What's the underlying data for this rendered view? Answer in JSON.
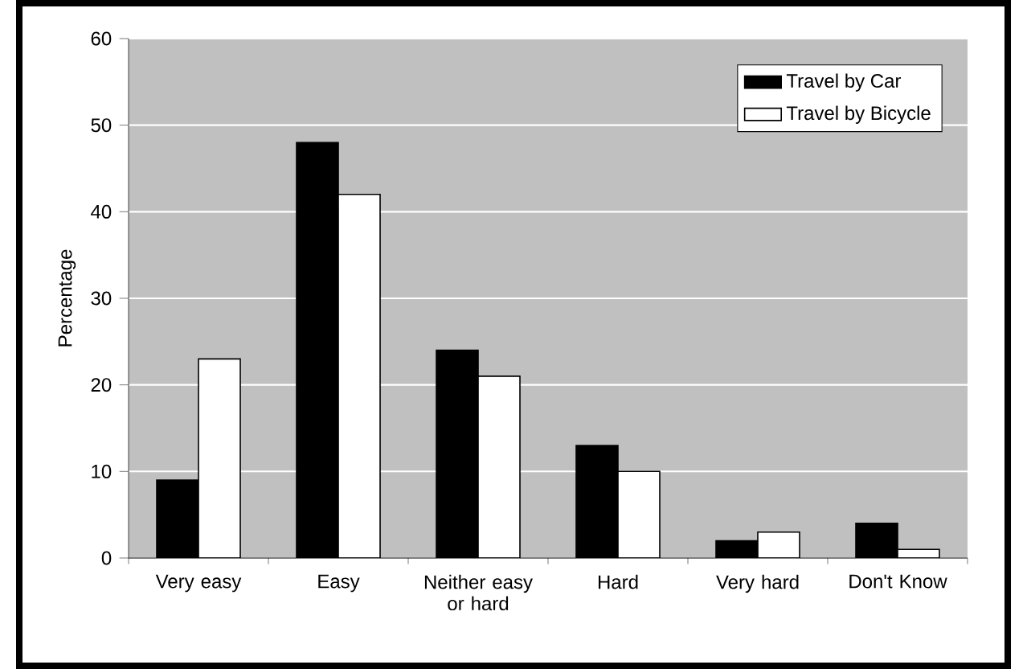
{
  "chart_data": {
    "type": "bar",
    "ylabel": "Percentage",
    "categories": [
      "Very easy",
      "Easy",
      "Neither easy or hard",
      "Hard",
      "Very hard",
      "Don't Know"
    ],
    "series": [
      {
        "name": "Travel by Car",
        "color": "#000000",
        "values": [
          9,
          48,
          24,
          13,
          2,
          4
        ]
      },
      {
        "name": "Travel by Bicycle",
        "color": "#ffffff",
        "values": [
          23,
          42,
          21,
          10,
          3,
          1
        ]
      }
    ],
    "ylim": [
      0,
      60
    ],
    "yticks": [
      0,
      10,
      20,
      30,
      40,
      50,
      60
    ],
    "grid": "y",
    "legend": "top right"
  }
}
